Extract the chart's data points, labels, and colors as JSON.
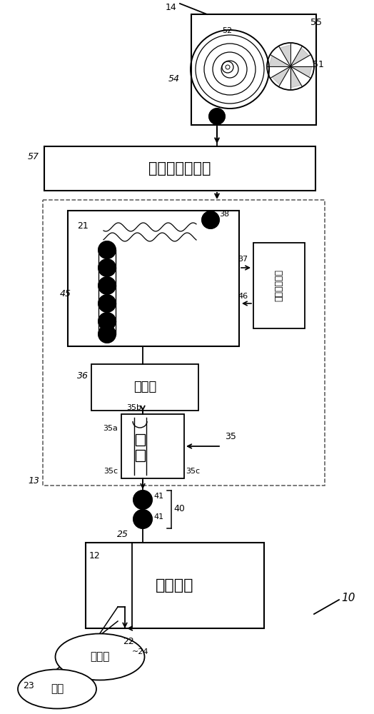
{
  "bg": "#ffffff",
  "lc": "#000000",
  "fig_w": 5.24,
  "fig_h": 10.0,
  "dpi": 100,
  "cast_unit": "流延单元",
  "stretcher": "滚柠立式拉伸机",
  "slitter": "分切机",
  "adsorb": "吸附回收装置",
  "polymer": "聚合物",
  "solvent": "溦剂"
}
